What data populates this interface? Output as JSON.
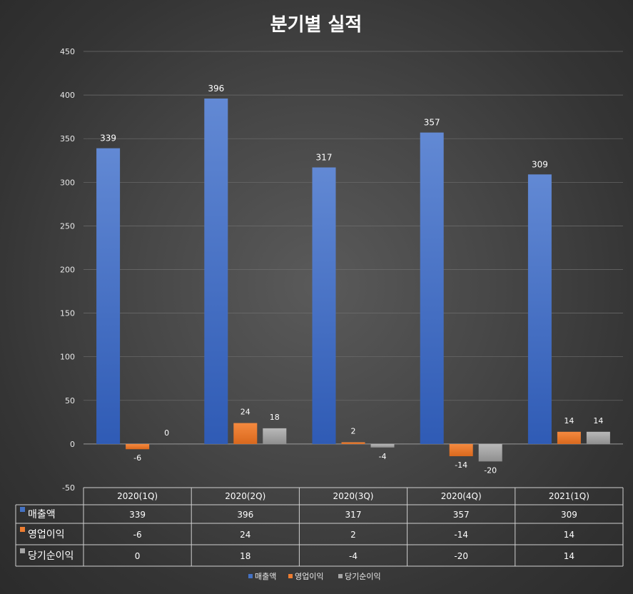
{
  "chart_data": {
    "type": "bar",
    "title": "분기별 실적",
    "categories": [
      "2020(1Q)",
      "2020(2Q)",
      "2020(3Q)",
      "2020(4Q)",
      "2021(1Q)"
    ],
    "series": [
      {
        "name": "매출액",
        "values": [
          339,
          396,
          317,
          357,
          309
        ],
        "color": "#4472c4"
      },
      {
        "name": "영업이익",
        "values": [
          -6,
          24,
          2,
          -14,
          14
        ],
        "color": "#ed7d31"
      },
      {
        "name": "당기순이익",
        "values": [
          0,
          18,
          -4,
          -20,
          14
        ],
        "color": "#a5a5a5"
      }
    ],
    "ylim": [
      -50,
      450
    ],
    "yticks": [
      -50,
      0,
      50,
      100,
      150,
      200,
      250,
      300,
      350,
      400,
      450
    ],
    "grid": true,
    "legend": "bottom",
    "data_table": true
  }
}
